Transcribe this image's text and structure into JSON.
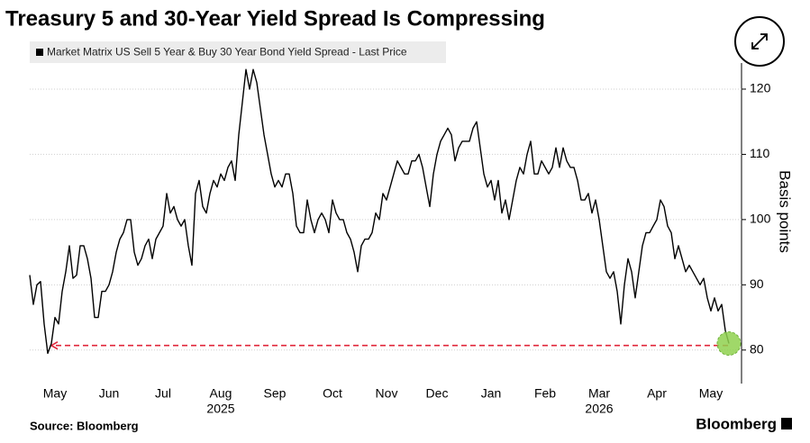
{
  "chart_data": {
    "type": "line",
    "title": "Treasury 5 and 30-Year Yield Spread Is Compressing",
    "legend_label": "Market Matrix US Sell 5 Year & Buy 30 Year Bond Yield Spread - Last Price",
    "y_axis_label": "Basis points",
    "source": "Source: Bloomberg",
    "brand": "Bloomberg",
    "color": "#000000",
    "categories": [
      null,
      null,
      null,
      null,
      null,
      null,
      null,
      "May",
      null,
      null,
      null,
      null,
      null,
      null,
      null,
      null,
      null,
      null,
      null,
      null,
      null,
      null,
      "Jun",
      null,
      null,
      null,
      null,
      null,
      null,
      null,
      null,
      null,
      null,
      null,
      null,
      null,
      null,
      "Jul",
      null,
      null,
      null,
      null,
      null,
      null,
      null,
      null,
      null,
      null,
      null,
      null,
      null,
      null,
      null,
      "Aug",
      null,
      null,
      null,
      null,
      null,
      null,
      null,
      null,
      null,
      null,
      null,
      null,
      null,
      null,
      "Sep",
      null,
      null,
      null,
      null,
      null,
      null,
      null,
      null,
      null,
      null,
      null,
      null,
      null,
      null,
      null,
      "Oct",
      null,
      null,
      null,
      null,
      null,
      null,
      null,
      null,
      null,
      null,
      null,
      null,
      null,
      null,
      "Nov",
      null,
      null,
      null,
      null,
      null,
      null,
      null,
      null,
      null,
      null,
      null,
      null,
      null,
      "Dec",
      null,
      null,
      null,
      null,
      null,
      null,
      null,
      null,
      null,
      null,
      null,
      null,
      null,
      null,
      "Jan",
      null,
      null,
      null,
      null,
      null,
      null,
      null,
      null,
      null,
      null,
      null,
      null,
      null,
      null,
      "Feb",
      null,
      null,
      null,
      null,
      null,
      null,
      null,
      null,
      null,
      null,
      null,
      null,
      null,
      null,
      "Mar",
      null,
      null,
      null,
      null,
      null,
      null,
      null,
      null,
      null,
      null,
      null,
      null,
      null,
      null,
      null,
      "Apr",
      null,
      null,
      null,
      null,
      null,
      null,
      null,
      null,
      null,
      null,
      null,
      null,
      null,
      null,
      "May",
      null,
      null,
      null,
      null,
      null
    ],
    "years": [
      null,
      null,
      null,
      null,
      null,
      null,
      null,
      null,
      null,
      null,
      null,
      null,
      null,
      null,
      null,
      null,
      null,
      null,
      null,
      null,
      null,
      null,
      null,
      null,
      null,
      null,
      null,
      null,
      null,
      null,
      null,
      null,
      null,
      null,
      null,
      null,
      null,
      null,
      null,
      null,
      null,
      null,
      null,
      null,
      null,
      null,
      null,
      null,
      null,
      null,
      null,
      null,
      null,
      "2025",
      null,
      null,
      null,
      null,
      null,
      null,
      null,
      null,
      null,
      null,
      null,
      null,
      null,
      null,
      null,
      null,
      null,
      null,
      null,
      null,
      null,
      null,
      null,
      null,
      null,
      null,
      null,
      null,
      null,
      null,
      null,
      null,
      null,
      null,
      null,
      null,
      null,
      null,
      null,
      null,
      null,
      null,
      null,
      null,
      null,
      null,
      null,
      null,
      null,
      null,
      null,
      null,
      null,
      null,
      null,
      null,
      null,
      null,
      null,
      null,
      null,
      null,
      null,
      null,
      null,
      null,
      null,
      null,
      null,
      null,
      null,
      null,
      null,
      null,
      null,
      null,
      null,
      null,
      null,
      null,
      null,
      null,
      null,
      null,
      null,
      null,
      null,
      null,
      null,
      null,
      null,
      null,
      null,
      null,
      null,
      null,
      null,
      null,
      null,
      null,
      null,
      null,
      null,
      null,
      "2026",
      null,
      null,
      null,
      null,
      null,
      null,
      null,
      null,
      null,
      null,
      null,
      null,
      null,
      null,
      null,
      null,
      null,
      null,
      null,
      null,
      null,
      null,
      null,
      null,
      null,
      null,
      null,
      null,
      null,
      null,
      null,
      null,
      null,
      null,
      null,
      null
    ],
    "values": [
      91.5,
      87,
      90,
      90.5,
      84,
      79.5,
      81,
      85,
      84,
      89,
      92,
      96,
      91,
      91.5,
      96,
      96,
      94,
      91,
      85,
      85,
      89,
      89,
      90,
      92,
      95,
      97,
      98,
      100,
      100,
      95,
      93,
      94,
      96,
      97,
      94,
      97,
      98,
      99,
      104,
      101,
      102,
      100,
      99,
      100,
      96,
      93,
      104,
      106,
      102,
      101,
      104,
      106,
      105,
      107,
      106,
      108,
      109,
      106,
      113,
      118,
      123,
      120,
      123,
      121,
      117,
      113,
      110,
      107,
      105,
      106,
      105,
      107,
      107,
      104,
      99,
      98,
      98,
      103,
      100,
      98,
      100,
      101,
      100,
      98,
      103,
      101,
      100,
      100,
      98,
      97,
      95,
      92,
      96,
      97,
      97,
      98,
      101,
      100,
      104,
      103,
      105,
      107,
      109,
      108,
      107,
      107,
      109,
      109,
      110,
      108,
      105,
      102,
      107,
      110,
      112,
      113,
      114,
      113,
      109,
      111,
      112,
      112,
      112,
      114,
      115,
      111,
      107,
      105,
      106,
      103,
      106,
      101,
      103,
      100,
      103,
      106,
      108,
      107,
      110,
      112,
      107,
      107,
      109,
      108,
      107,
      108,
      111,
      108,
      111,
      109,
      108,
      108,
      106,
      103,
      103,
      104,
      101,
      103,
      100,
      96,
      92,
      91,
      92,
      89,
      84,
      90,
      94,
      92,
      88,
      92,
      96,
      98,
      98,
      99,
      100,
      103,
      102,
      99,
      98,
      94,
      96,
      94,
      92,
      93,
      92,
      91,
      90,
      91,
      88,
      86,
      88,
      86,
      87,
      83,
      81
    ],
    "reference_line": {
      "value": 80.7,
      "color": "#e0263a"
    },
    "highlight_color": "#8fd14f",
    "ylim": [
      75,
      124
    ],
    "yticks": [
      80,
      90,
      100,
      110,
      120
    ],
    "grid": true
  }
}
